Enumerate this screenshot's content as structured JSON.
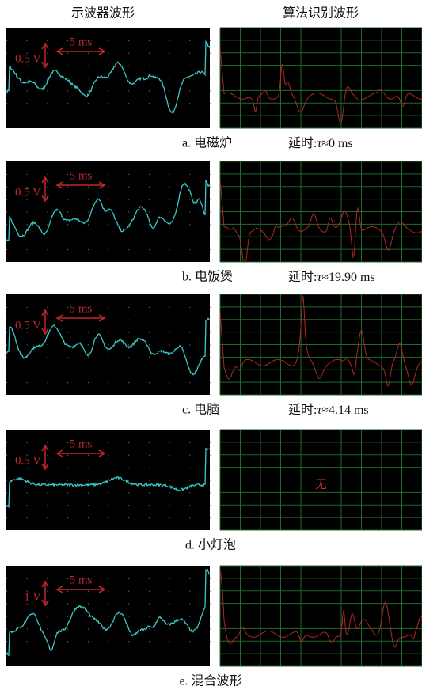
{
  "header": {
    "left_title": "示波器波形",
    "right_title": "算法识别波形"
  },
  "rows": [
    {
      "caption": "a. 电磁炉",
      "voltage_label": "0.5 V",
      "time_label": "5 ms",
      "delay": {
        "label": "延时:",
        "symbol": "τ",
        "value": "≈0 ms"
      }
    },
    {
      "caption": "b. 电饭煲",
      "voltage_label": "0.5 V",
      "time_label": "5 ms",
      "delay": {
        "label": "延时:",
        "symbol": "τ",
        "value": "≈19.90 ms"
      }
    },
    {
      "caption": "c. 电脑",
      "voltage_label": "0.5 V",
      "time_label": "5 ms",
      "delay": {
        "label": "延时:",
        "symbol": "τ",
        "value": "≈4.14 ms"
      }
    },
    {
      "caption": "d. 小灯泡",
      "voltage_label": "0.5 V",
      "time_label": "5 ms",
      "none_label": "无"
    },
    {
      "caption": "e. 混合波形",
      "voltage_label": "1 V",
      "time_label": "5 ms"
    }
  ]
}
